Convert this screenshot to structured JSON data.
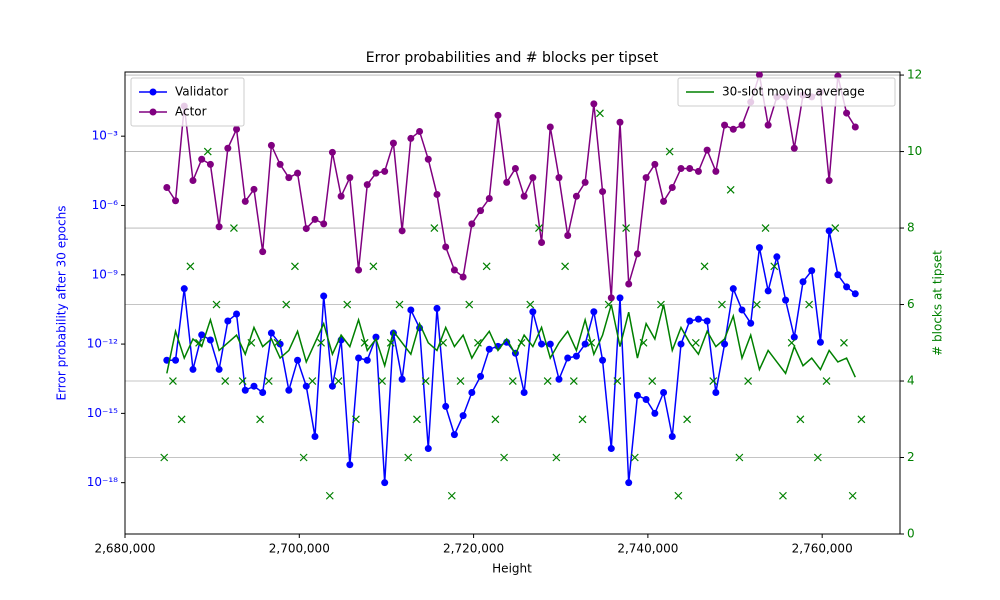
{
  "chart_data": {
    "type": "line",
    "title": "Error probabilities and # blocks per tipset",
    "x_label": "Height",
    "y_label": "Error probability after 30 epochs",
    "y2_label": "# blocks at tipset",
    "xlim": [
      2680000,
      2768930
    ],
    "xticks": [
      {
        "value": 2680000,
        "label": "2,680,000"
      },
      {
        "value": 2700000,
        "label": "2,700,000"
      },
      {
        "value": 2720000,
        "label": "2,720,000"
      },
      {
        "value": 2740000,
        "label": "2,740,000"
      },
      {
        "value": 2760000,
        "label": "2,760,000"
      }
    ],
    "ylog": true,
    "ylim": [
      6e-21,
      0.6
    ],
    "yticks": [
      {
        "value": 0.001,
        "label": "10⁻³"
      },
      {
        "value": 1e-06,
        "label": "10⁻⁶"
      },
      {
        "value": 1e-09,
        "label": "10⁻⁹"
      },
      {
        "value": 1e-12,
        "label": "10⁻¹²"
      },
      {
        "value": 1e-15,
        "label": "10⁻¹⁵"
      },
      {
        "value": 1e-18,
        "label": "10⁻¹⁸"
      }
    ],
    "y_color": "#0000ff",
    "y2lim": [
      0,
      12.08
    ],
    "y2ticks": [
      0,
      2,
      4,
      6,
      8,
      10,
      12
    ],
    "y2_color": "#008000",
    "grid": "y2",
    "legend": "upper left",
    "legend2": "upper right",
    "x": [
      2684800,
      2685800,
      2686800,
      2687800,
      2688800,
      2689800,
      2690800,
      2691800,
      2692800,
      2693800,
      2694800,
      2695800,
      2696800,
      2697800,
      2698800,
      2699800,
      2700800,
      2701800,
      2702800,
      2703800,
      2704800,
      2705800,
      2706800,
      2707800,
      2708800,
      2709800,
      2710800,
      2711800,
      2712800,
      2713800,
      2714800,
      2715800,
      2716800,
      2717800,
      2718800,
      2719800,
      2720800,
      2721800,
      2722800,
      2723800,
      2724800,
      2725800,
      2726800,
      2727800,
      2728800,
      2729800,
      2730800,
      2731800,
      2732800,
      2733800,
      2734800,
      2735800,
      2736800,
      2737800,
      2738800,
      2739800,
      2740800,
      2741800,
      2742800,
      2743800,
      2744800,
      2745800,
      2746800,
      2747800,
      2748800,
      2749800,
      2750800,
      2751800,
      2752800,
      2753800,
      2754800,
      2755800,
      2756800,
      2757800,
      2758800,
      2759800,
      2760800,
      2761800,
      2762800,
      2763800
    ],
    "series": [
      {
        "name": "Validator",
        "color": "#0000ff",
        "marker": "o",
        "values": [
          2e-13,
          2e-13,
          2.5e-10,
          8e-14,
          2.5e-12,
          1.5e-12,
          8e-14,
          1e-11,
          2e-11,
          1e-14,
          1.5e-14,
          8e-15,
          3e-12,
          1e-12,
          1e-14,
          2e-13,
          1.5e-14,
          1e-16,
          1.2e-10,
          1.5e-14,
          1.5e-12,
          6e-18,
          2.5e-13,
          2e-13,
          2e-12,
          1e-18,
          3e-12,
          3e-14,
          3e-11,
          5e-12,
          3e-17,
          3.5e-11,
          2e-15,
          1.2e-16,
          8e-16,
          8e-15,
          4e-14,
          6e-13,
          8e-13,
          1.2e-12,
          4e-13,
          8e-15,
          2.5e-11,
          1e-12,
          1e-12,
          3e-14,
          2.5e-13,
          3e-13,
          1e-12,
          2.5e-11,
          2e-13,
          3e-17,
          1e-10,
          1e-18,
          6e-15,
          4e-15,
          1e-15,
          8e-15,
          1e-16,
          1e-12,
          1e-11,
          1.2e-11,
          1e-11,
          8e-15,
          1e-12,
          2.5e-10,
          3e-11,
          8e-12,
          1.5e-08,
          2e-10,
          6e-09,
          8e-11,
          2e-12,
          5e-10,
          1.5e-09,
          1.2e-12,
          8e-08,
          1e-09,
          3e-10,
          1.5e-10
        ]
      },
      {
        "name": "Actor",
        "color": "#800080",
        "marker": "o",
        "values": [
          6e-06,
          1.6e-06,
          0.02,
          1.2e-05,
          0.0001,
          6e-05,
          1.2e-07,
          0.0003,
          0.002,
          1.5e-06,
          5e-06,
          1e-08,
          0.0004,
          6e-05,
          1.6e-05,
          2.5e-05,
          1e-07,
          2.5e-07,
          1.6e-07,
          0.0002,
          2.5e-06,
          1.6e-05,
          1.6e-09,
          8e-06,
          2.5e-05,
          3e-05,
          0.0005,
          8e-08,
          0.0008,
          0.0016,
          0.0001,
          3e-06,
          1.6e-08,
          1.6e-09,
          8e-10,
          1.6e-07,
          6e-07,
          2e-06,
          0.008,
          1e-05,
          4e-05,
          2.5e-06,
          1.6e-05,
          2.5e-08,
          0.0025,
          1.6e-05,
          5e-08,
          2.5e-06,
          1e-05,
          0.025,
          4e-06,
          1e-10,
          0.004,
          4e-10,
          8e-09,
          1.6e-05,
          6e-05,
          1.5e-06,
          6e-06,
          4e-05,
          4e-05,
          3e-05,
          0.00025,
          3e-05,
          0.003,
          0.002,
          0.003,
          0.03,
          0.45,
          0.003,
          0.05,
          0.05,
          0.0003,
          0.06,
          0.05,
          0.08,
          1.2e-05,
          0.4,
          0.01,
          0.0025
        ]
      },
      {
        "name": "30-slot moving average",
        "color": "#008000",
        "axis": "y2",
        "values": [
          4.2,
          5.3,
          4.6,
          5.1,
          4.9,
          5.6,
          4.8,
          5.0,
          5.2,
          4.7,
          5.4,
          4.9,
          5.1,
          4.6,
          4.8,
          5.3,
          4.5,
          5.0,
          5.5,
          4.7,
          5.2,
          4.9,
          5.6,
          4.8,
          5.1,
          4.4,
          5.3,
          5.0,
          4.7,
          5.5,
          5.0,
          4.8,
          5.4,
          4.9,
          5.2,
          4.6,
          5.0,
          5.3,
          4.8,
          5.1,
          4.7,
          5.2,
          4.9,
          5.4,
          4.6,
          5.0,
          5.3,
          4.8,
          5.6,
          4.7,
          5.2,
          6.0,
          4.9,
          5.8,
          4.6,
          5.5,
          5.1,
          6.0,
          4.8,
          5.4,
          5.0,
          4.7,
          5.3,
          4.9,
          5.1,
          5.7,
          4.6,
          5.2,
          4.3,
          4.8,
          4.5,
          4.2,
          4.9,
          4.4,
          4.6,
          4.3,
          4.8,
          4.5,
          4.6,
          4.1
        ]
      },
      {
        "kind": "scatter",
        "color": "#008000",
        "axis": "y2",
        "marker": "x",
        "x": [
          2684500,
          2685500,
          2686500,
          2687500,
          2688500,
          2689500,
          2690500,
          2691500,
          2692500,
          2693500,
          2694500,
          2695500,
          2696500,
          2697500,
          2698500,
          2699500,
          2700500,
          2701500,
          2702500,
          2703500,
          2704500,
          2705500,
          2706500,
          2707500,
          2708500,
          2709500,
          2710500,
          2711500,
          2712500,
          2713500,
          2714500,
          2715500,
          2716500,
          2717500,
          2718500,
          2719500,
          2720500,
          2721500,
          2722500,
          2723500,
          2724500,
          2725500,
          2726500,
          2727500,
          2728500,
          2729500,
          2730500,
          2731500,
          2732500,
          2733500,
          2734500,
          2735500,
          2736500,
          2737500,
          2738500,
          2739500,
          2740500,
          2741500,
          2742500,
          2743500,
          2744500,
          2745500,
          2746500,
          2747500,
          2748500,
          2749500,
          2750500,
          2751500,
          2752500,
          2753500,
          2754500,
          2755500,
          2756500,
          2757500,
          2758500,
          2759500,
          2760500,
          2761500,
          2762500,
          2763500,
          2764500
        ],
        "values": [
          2,
          4,
          3,
          7,
          5,
          10,
          6,
          4,
          8,
          4,
          5,
          3,
          4,
          5,
          6,
          7,
          2,
          4,
          5,
          1,
          4,
          6,
          3,
          5,
          7,
          4,
          5,
          6,
          2,
          3,
          4,
          8,
          5,
          1,
          4,
          6,
          5,
          7,
          3,
          2,
          4,
          5,
          6,
          8,
          4,
          2,
          7,
          4,
          3,
          5,
          11,
          6,
          4,
          8,
          2,
          5,
          4,
          6,
          10,
          1,
          3,
          5,
          7,
          4,
          6,
          9,
          2,
          4,
          6,
          8,
          7,
          1,
          5,
          3,
          6,
          2,
          4,
          8,
          5,
          1,
          3
        ]
      }
    ]
  }
}
